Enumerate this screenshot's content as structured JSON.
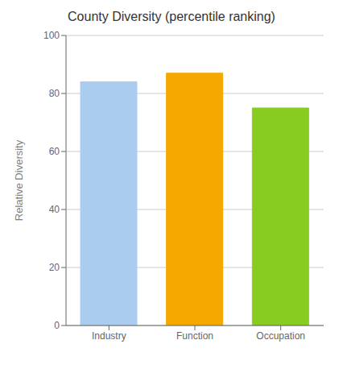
{
  "chart_data": {
    "type": "bar",
    "title": "County Diversity (percentile ranking)",
    "ylabel": "Relative Diversity",
    "categories": [
      "Industry",
      "Function",
      "Occupation"
    ],
    "values": [
      84,
      87,
      75
    ],
    "colors": [
      "#aaccee",
      "#f5a800",
      "#88cc22"
    ],
    "ylim": [
      0,
      100
    ],
    "yticks": [
      0,
      20,
      40,
      60,
      80,
      100
    ],
    "grid": true
  }
}
